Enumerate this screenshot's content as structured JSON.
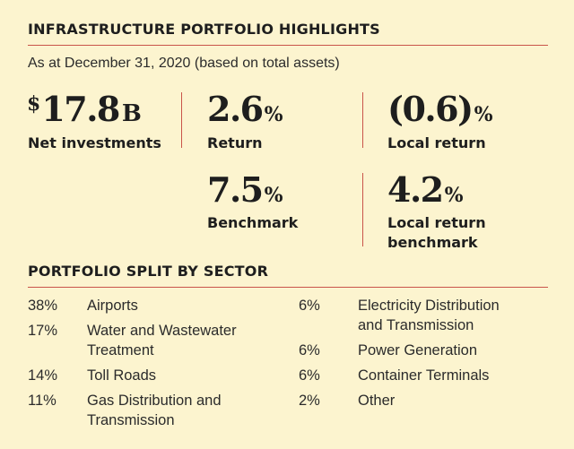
{
  "highlights": {
    "title": "INFRASTRUCTURE PORTFOLIO HIGHLIGHTS",
    "subtitle": "As at December 31, 2020 (based on total assets)",
    "net_investments": {
      "currency": "$",
      "value": "17.8",
      "suffix": "B",
      "label": "Net investments"
    },
    "return": {
      "value": "2.6",
      "unit": "%",
      "label": "Return"
    },
    "local_return": {
      "value": "(0.6)",
      "unit": "%",
      "label": "Local return"
    },
    "benchmark": {
      "value": "7.5",
      "unit": "%",
      "label": "Benchmark"
    },
    "local_return_benchmark": {
      "value": "4.2",
      "unit": "%",
      "label_line1": "Local return",
      "label_line2": "benchmark"
    }
  },
  "sector_split": {
    "title": "PORTFOLIO SPLIT BY SECTOR",
    "left": [
      {
        "pct": "38%",
        "lines": [
          "Airports"
        ]
      },
      {
        "pct": "17%",
        "lines": [
          "Water and Wastewater",
          "Treatment"
        ]
      },
      {
        "pct": "14%",
        "lines": [
          "Toll Roads"
        ]
      },
      {
        "pct": "11%",
        "lines": [
          "Gas Distribution and",
          "Transmission"
        ]
      }
    ],
    "right": [
      {
        "pct": "6%",
        "lines": [
          "Electricity Distribution",
          "and Transmission"
        ]
      },
      {
        "pct": "6%",
        "lines": [
          "Power Generation"
        ]
      },
      {
        "pct": "6%",
        "lines": [
          "Container Terminals"
        ]
      },
      {
        "pct": "2%",
        "lines": [
          "Other"
        ]
      }
    ]
  },
  "colors": {
    "background": "#fcf4cf",
    "rule": "#c9544a",
    "text": "#1e1e1e"
  }
}
